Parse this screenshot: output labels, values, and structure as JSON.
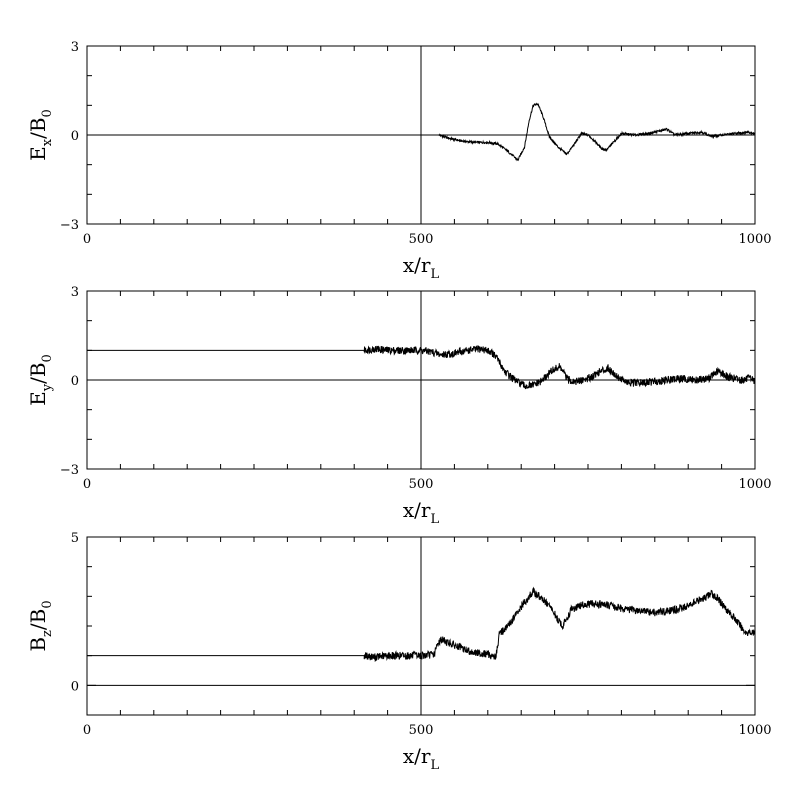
{
  "chart_data": [
    {
      "type": "line",
      "xlabel": {
        "main": "x/r",
        "sub": "L"
      },
      "ylabel": {
        "main": "E",
        "sub": "x",
        "mid": "/B",
        "sub2": "0"
      },
      "xlim": [
        0,
        1000
      ],
      "ylim": [
        -3,
        3
      ],
      "x_ticks": [
        "0",
        "500",
        "1000"
      ],
      "y_ticks": [
        "-3",
        "0",
        "3"
      ],
      "reference_lines": {
        "horizontal": [
          0
        ],
        "vertical": [
          500
        ]
      },
      "series": [
        {
          "x": [
            527,
            540,
            560,
            580,
            600,
            615,
            630,
            645,
            655,
            662,
            668,
            675,
            683,
            692,
            705,
            718,
            730,
            740,
            750,
            760,
            770,
            778,
            788,
            800,
            820,
            840,
            860,
            868,
            880,
            900,
            920,
            935,
            950,
            970,
            990,
            1000
          ],
          "y": [
            0.0,
            -0.1,
            -0.2,
            -0.25,
            -0.25,
            -0.3,
            -0.55,
            -0.85,
            -0.4,
            0.5,
            1.0,
            1.05,
            0.6,
            -0.05,
            -0.4,
            -0.65,
            -0.3,
            0.05,
            0.0,
            -0.2,
            -0.45,
            -0.5,
            -0.25,
            0.05,
            0.0,
            0.05,
            0.15,
            0.2,
            0.0,
            0.05,
            0.1,
            -0.05,
            0.0,
            0.05,
            0.1,
            0.05
          ]
        }
      ]
    },
    {
      "type": "line",
      "xlabel": {
        "main": "x/r",
        "sub": "L"
      },
      "ylabel": {
        "main": "E",
        "sub": "y",
        "mid": "/B",
        "sub2": "0"
      },
      "xlim": [
        0,
        1000
      ],
      "ylim": [
        -3,
        3
      ],
      "x_ticks": [
        "0",
        "500",
        "1000"
      ],
      "y_ticks": [
        "-3",
        "0",
        "3"
      ],
      "reference_lines": {
        "horizontal": [
          0
        ],
        "vertical": [
          500
        ]
      },
      "series": [
        {
          "x": [
            0,
            415,
            430,
            450,
            480,
            500,
            515,
            530,
            550,
            570,
            590,
            605,
            615,
            625,
            640,
            655,
            665,
            680,
            695,
            708,
            720,
            735,
            750,
            765,
            780,
            795,
            810,
            830,
            850,
            870,
            890,
            910,
            930,
            945,
            960,
            980,
            995,
            1000
          ],
          "y": [
            1.0,
            1.0,
            1.05,
            1.0,
            1.0,
            1.0,
            0.95,
            0.85,
            0.9,
            1.0,
            1.05,
            0.95,
            0.7,
            0.3,
            0.0,
            -0.2,
            -0.2,
            -0.05,
            0.3,
            0.45,
            0.0,
            -0.05,
            0.05,
            0.25,
            0.4,
            0.1,
            -0.1,
            -0.1,
            -0.05,
            0.0,
            0.05,
            0.0,
            0.05,
            0.3,
            0.1,
            0.0,
            0.05,
            -0.05
          ]
        }
      ]
    },
    {
      "type": "line",
      "xlabel": {
        "main": "x/r",
        "sub": "L"
      },
      "ylabel": {
        "main": "B",
        "sub": "z",
        "mid": "/B",
        "sub2": "0"
      },
      "xlim": [
        0,
        1000
      ],
      "ylim": [
        -1,
        5
      ],
      "x_ticks": [
        "0",
        "500",
        "1000"
      ],
      "y_ticks": [
        "0",
        "5"
      ],
      "reference_lines": {
        "horizontal": [
          0
        ],
        "vertical": [
          500
        ]
      },
      "series": [
        {
          "x": [
            0,
            415,
            430,
            450,
            480,
            500,
            520,
            525,
            530,
            545,
            560,
            580,
            600,
            612,
            618,
            625,
            640,
            655,
            668,
            680,
            695,
            705,
            712,
            725,
            740,
            760,
            780,
            800,
            815,
            830,
            850,
            870,
            890,
            910,
            925,
            935,
            945,
            960,
            975,
            985,
            1000
          ],
          "y": [
            1.0,
            1.0,
            0.95,
            1.0,
            1.0,
            1.0,
            1.05,
            1.4,
            1.55,
            1.4,
            1.25,
            1.1,
            1.05,
            0.95,
            1.8,
            1.85,
            2.3,
            2.8,
            3.15,
            2.95,
            2.6,
            2.2,
            2.0,
            2.55,
            2.7,
            2.75,
            2.7,
            2.6,
            2.55,
            2.5,
            2.45,
            2.5,
            2.6,
            2.8,
            2.95,
            3.1,
            2.9,
            2.5,
            2.1,
            1.8,
            1.75
          ]
        }
      ]
    }
  ]
}
